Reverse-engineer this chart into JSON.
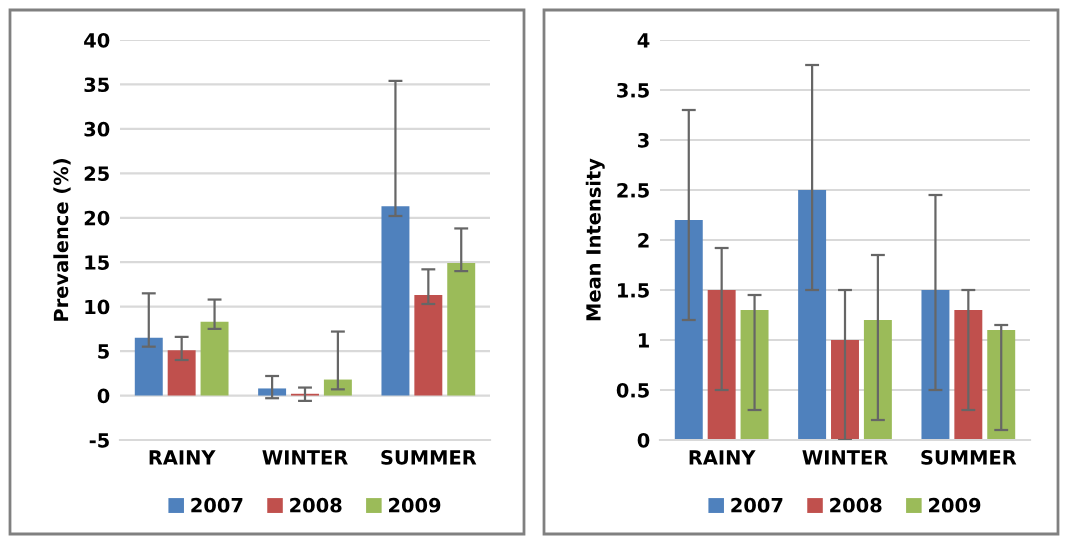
{
  "chart_data": [
    {
      "type": "bar",
      "ylabel": "Prevalence (%)",
      "categories": [
        "RAINY",
        "WINTER",
        "SUMMER"
      ],
      "ylim": [
        -5,
        40
      ],
      "yticks": [
        -5,
        0,
        5,
        10,
        15,
        20,
        25,
        30,
        35,
        40
      ],
      "grid": "y",
      "legend": "bottom",
      "series": [
        {
          "name": "2007",
          "color": "#4f81bd",
          "values": [
            6.5,
            0.8,
            21.3
          ],
          "errors": [
            [
              5.5,
              11.5
            ],
            [
              -0.3,
              2.2
            ],
            [
              20.2,
              35.4
            ]
          ]
        },
        {
          "name": "2008",
          "color": "#c0504d",
          "values": [
            5.1,
            0.2,
            11.3
          ],
          "errors": [
            [
              4.0,
              6.6
            ],
            [
              -0.6,
              0.9
            ],
            [
              10.3,
              14.2
            ]
          ]
        },
        {
          "name": "2009",
          "color": "#9bbb59",
          "values": [
            8.3,
            1.8,
            14.9
          ],
          "errors": [
            [
              7.5,
              10.8
            ],
            [
              0.7,
              7.2
            ],
            [
              14.0,
              18.8
            ]
          ]
        }
      ]
    },
    {
      "type": "bar",
      "ylabel": "Mean Intensity",
      "categories": [
        "RAINY",
        "WINTER",
        "SUMMER"
      ],
      "ylim": [
        0,
        4
      ],
      "yticks": [
        0,
        0.5,
        1,
        1.5,
        2,
        2.5,
        3,
        3.5,
        4
      ],
      "grid": "y",
      "legend": "bottom",
      "series": [
        {
          "name": "2007",
          "color": "#4f81bd",
          "values": [
            2.2,
            2.5,
            1.5
          ],
          "errors": [
            [
              1.2,
              3.3
            ],
            [
              1.5,
              3.75
            ],
            [
              0.5,
              2.45
            ]
          ]
        },
        {
          "name": "2008",
          "color": "#c0504d",
          "values": [
            1.5,
            1.0,
            1.3
          ],
          "errors": [
            [
              0.5,
              1.92
            ],
            [
              0.0,
              1.5
            ],
            [
              0.3,
              1.5
            ]
          ]
        },
        {
          "name": "2009",
          "color": "#9bbb59",
          "values": [
            1.3,
            1.2,
            1.1
          ],
          "errors": [
            [
              0.3,
              1.45
            ],
            [
              0.2,
              1.85
            ],
            [
              0.1,
              1.15
            ]
          ]
        }
      ]
    }
  ]
}
